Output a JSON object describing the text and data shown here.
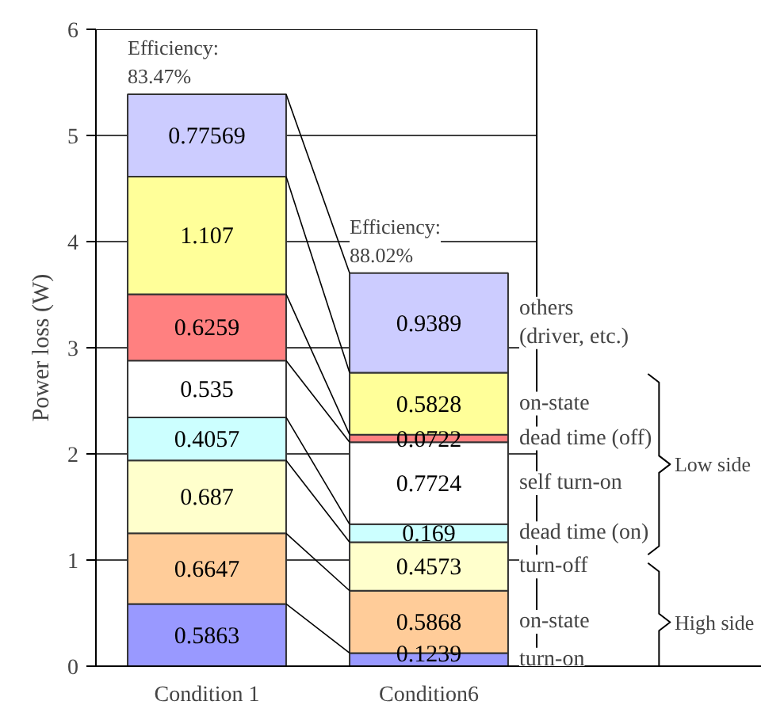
{
  "chart_data": {
    "type": "bar",
    "stacked": true,
    "ylabel": "Power loss (W)",
    "categories": [
      "Condition 1",
      "Condition6"
    ],
    "series": [
      {
        "name": "turn-on",
        "color": "#9999ff",
        "values": [
          0.5863,
          0.1239
        ]
      },
      {
        "name": "on-state",
        "color": "#ffcc99",
        "values": [
          0.6647,
          0.5868
        ]
      },
      {
        "name": "turn-off",
        "color": "#ffffcc",
        "values": [
          0.687,
          0.4573
        ]
      },
      {
        "name": "dead time (on)",
        "color": "#ccffff",
        "values": [
          0.4057,
          0.169
        ]
      },
      {
        "name": "self turn-on",
        "color": "#ffffff",
        "values": [
          0.535,
          0.7724
        ]
      },
      {
        "name": "dead time (off)",
        "color": "#ff8080",
        "values": [
          0.6259,
          0.0722
        ]
      },
      {
        "name": "on-state",
        "color": "#ffff99",
        "values": [
          1.107,
          0.5828
        ]
      },
      {
        "name": "others\n(driver, etc.)",
        "color": "#ccccff",
        "values": [
          0.77569,
          0.9389
        ]
      }
    ],
    "data_labels": true,
    "ylim": [
      0,
      6
    ],
    "yticks": [
      0,
      1,
      2,
      3,
      4,
      5,
      6
    ],
    "grid": "y",
    "legend": false,
    "annotations": [
      {
        "text": "Efficiency:\n83.47%",
        "x": "Condition 1",
        "y": 5.39
      },
      {
        "text": "Efficiency:\n88.02%",
        "x": "Condition6",
        "y": 3.7
      },
      "Low side",
      "High side"
    ]
  }
}
